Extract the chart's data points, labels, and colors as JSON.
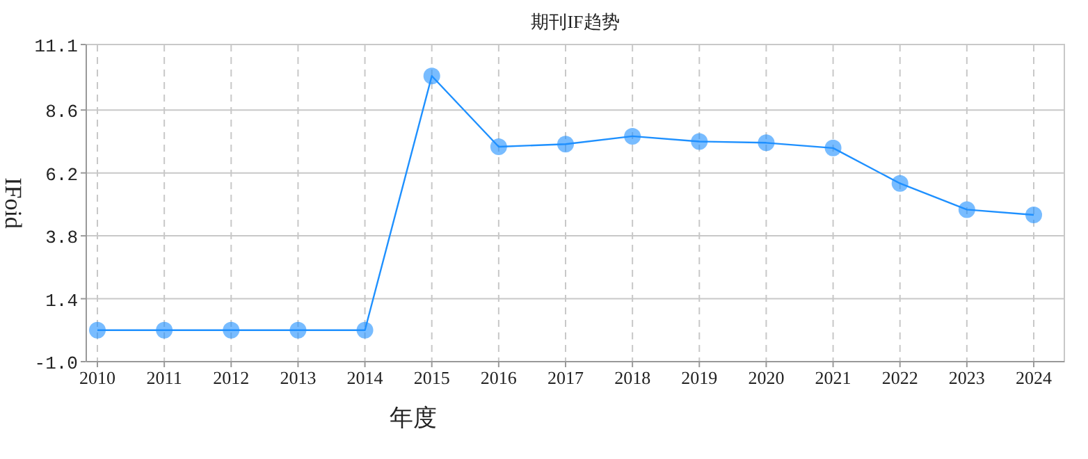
{
  "chart_data": {
    "type": "line",
    "title": "期刊IF趋势",
    "xlabel": "年度",
    "ylabel": "IFoid",
    "categories": [
      "2010",
      "2011",
      "2012",
      "2013",
      "2014",
      "2015",
      "2016",
      "2017",
      "2018",
      "2019",
      "2020",
      "2021",
      "2022",
      "2023",
      "2024"
    ],
    "series": [
      {
        "color": "#1e90ff",
        "values": [
          0.2,
          0.2,
          0.2,
          0.2,
          0.2,
          9.9,
          7.2,
          7.3,
          7.6,
          7.4,
          7.35,
          7.15,
          5.8,
          4.8,
          4.6
        ]
      }
    ],
    "ylim": [
      -1.0,
      11.1
    ],
    "yticks": [
      {
        "value": -1.0,
        "label": "-1.0"
      },
      1.4,
      3.8,
      6.2,
      8.6,
      11.1
    ],
    "grid": true,
    "marker": "circle",
    "line_style": "solid"
  }
}
